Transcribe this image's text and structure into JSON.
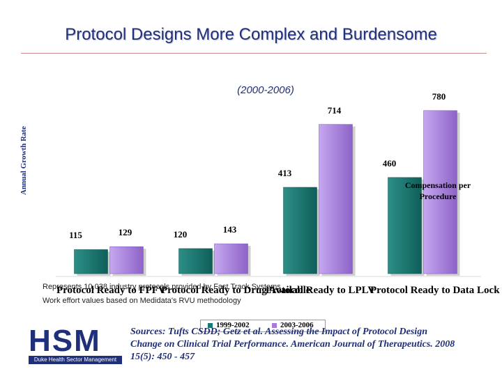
{
  "title": "Protocol Designs More Complex and Burdensome",
  "subtitle": "(2000-2006)",
  "chart_data": {
    "type": "bar",
    "title": "Protocol Designs More Complex and Burdensome",
    "subtitle": "(2000-2006)",
    "ylabel": "Annual Growth Rate",
    "xlabel": "",
    "categories": [
      "Protocol Ready to FPFV",
      "Protocol Ready to Drug Available",
      "Protocol Ready to LPLV",
      "Protocol Ready to Data Lock"
    ],
    "series": [
      {
        "name": "1999-2002",
        "color": "#1a7a73",
        "values": [
          115,
          120,
          413,
          460
        ]
      },
      {
        "name": "2003-2006",
        "color": "#a77bd8",
        "values": [
          129,
          143,
          714,
          780
        ]
      }
    ],
    "ylim": [
      0,
      800
    ],
    "grid": false,
    "legend_position": "bottom-center",
    "annotations": [
      "Compensation per Procedure"
    ]
  },
  "notes": [
    "Represents 10,038 industry protocols provided by Fast Track Systems",
    "Work effort values based on Medidata's RVU methodology"
  ],
  "logo": {
    "letters": "HSM",
    "tagline": "Duke Health Sector Management"
  },
  "sources": [
    "Sources: Tufts CSDD; Getz et al. Assessing the Impact of Protocol Design",
    "Change on Clinical Trial Performance. American Journal of Therapeutics. 2008",
    "15(5): 450 - 457"
  ]
}
